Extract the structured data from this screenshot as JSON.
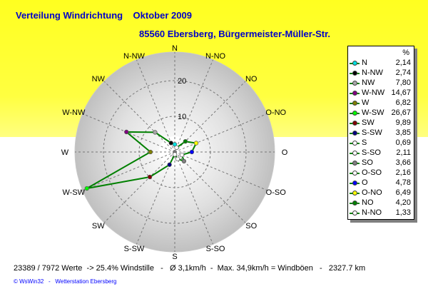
{
  "chart_data": {
    "type": "radar",
    "title": "Verteilung Windrichtung    Oktober 2009",
    "subtitle": "85560 Ebersberg, Bürgermeister-Müller-Str.",
    "unit_label": "%",
    "radial_ticks": [
      "10",
      "20"
    ],
    "radial_tick_values": [
      10,
      20
    ],
    "rmax": 28,
    "compass_labels": [
      "N",
      "N-NO",
      "NO",
      "O-NO",
      "O",
      "O-SO",
      "SO",
      "S-SO",
      "S",
      "S-SW",
      "SW",
      "W-SW",
      "W",
      "W-NW",
      "NW",
      "N-NW"
    ],
    "series": [
      {
        "name": "N",
        "value": 2.14,
        "color": "#00e0e0",
        "display": "2,14"
      },
      {
        "name": "N-NW",
        "value": 2.74,
        "color": "#000000",
        "display": "2,74"
      },
      {
        "name": "NW",
        "value": 7.8,
        "color": "#a8a8a8",
        "display": "7,80"
      },
      {
        "name": "W-NW",
        "value": 14.67,
        "color": "#800080",
        "display": "14,67"
      },
      {
        "name": "W",
        "value": 6.82,
        "color": "#808000",
        "display": "6,82"
      },
      {
        "name": "W-SW",
        "value": 26.67,
        "color": "#00ff00",
        "display": "26,67"
      },
      {
        "name": "SW",
        "value": 9.89,
        "color": "#800000",
        "display": "9,89"
      },
      {
        "name": "S-SW",
        "value": 3.85,
        "color": "#000080",
        "display": "3,85"
      },
      {
        "name": "S",
        "value": 0.69,
        "color": "#ffffff",
        "display": "0,69"
      },
      {
        "name": "S-SO",
        "value": 2.11,
        "color": "#ffffff",
        "display": "2,11"
      },
      {
        "name": "SO",
        "value": 3.66,
        "color": "#808080",
        "display": "3,66"
      },
      {
        "name": "O-SO",
        "value": 2.16,
        "color": "#ffffff",
        "display": "2,16"
      },
      {
        "name": "O",
        "value": 4.78,
        "color": "#0000ff",
        "display": "4,78"
      },
      {
        "name": "O-NO",
        "value": 6.49,
        "color": "#ffff00",
        "display": "6,49"
      },
      {
        "name": "NO",
        "value": 4.2,
        "color": "#008000",
        "display": "4,20"
      },
      {
        "name": "N-NO",
        "value": 1.33,
        "color": "#ffffff",
        "display": "1,33"
      }
    ],
    "line_color": "#008000"
  },
  "footer": "23389 / 7972 Werte  -> 25.4% Windstille   -   Ø 3,1km/h  -  Max. 34,9km/h = Windböen   -   2327.7 km",
  "copyright": "© WsWin32   -   Wetterstation Ebersberg"
}
